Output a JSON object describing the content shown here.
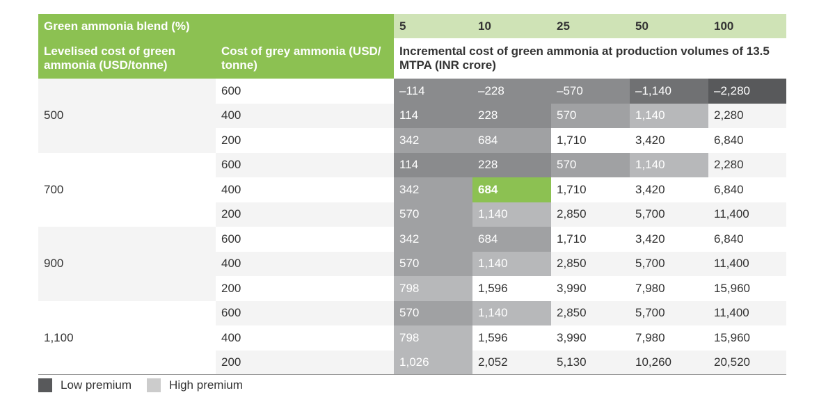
{
  "header": {
    "blend_label": "Green ammonia blend (%)",
    "blends": [
      "5",
      "10",
      "25",
      "50",
      "100"
    ],
    "lev_label": "Levelised cost of green ammonia (USD/tonne)",
    "grey_label": "Cost of grey ammonia (USD/ tonne)",
    "incremental_label": "Incremental cost of green ammonia at production volumes of 13.5 MTPA (INR crore)"
  },
  "colors": {
    "green": "#8cc152",
    "light_green": "#cfe3b6",
    "low_premium": "#58595b",
    "high_premium": "#cccccc"
  },
  "chart_data": {
    "type": "table",
    "columns": [
      "5",
      "10",
      "25",
      "50",
      "100"
    ],
    "groups": [
      {
        "levelised_cost": "500",
        "rows": [
          {
            "grey_cost": "600",
            "values": [
              "–114",
              "–228",
              "–570",
              "–1,140",
              "–2,280"
            ],
            "shades": [
              3,
              3,
              3,
              4,
              5
            ]
          },
          {
            "grey_cost": "400",
            "values": [
              "114",
              "228",
              "570",
              "1,140",
              "2,280"
            ],
            "shades": [
              3,
              3,
              2,
              1,
              0
            ]
          },
          {
            "grey_cost": "200",
            "values": [
              "342",
              "684",
              "1,710",
              "3,420",
              "6,840"
            ],
            "shades": [
              2,
              2,
              0,
              0,
              0
            ]
          }
        ]
      },
      {
        "levelised_cost": "700",
        "rows": [
          {
            "grey_cost": "600",
            "values": [
              "114",
              "228",
              "570",
              "1,140",
              "2,280"
            ],
            "shades": [
              3,
              3,
              2,
              1,
              0
            ]
          },
          {
            "grey_cost": "400",
            "values": [
              "342",
              "684",
              "1,710",
              "3,420",
              "6,840"
            ],
            "shades": [
              2,
              9,
              0,
              0,
              0
            ]
          },
          {
            "grey_cost": "200",
            "values": [
              "570",
              "1,140",
              "2,850",
              "5,700",
              "11,400"
            ],
            "shades": [
              2,
              1,
              0,
              0,
              0
            ]
          }
        ]
      },
      {
        "levelised_cost": "900",
        "rows": [
          {
            "grey_cost": "600",
            "values": [
              "342",
              "684",
              "1,710",
              "3,420",
              "6,840"
            ],
            "shades": [
              2,
              2,
              0,
              0,
              0
            ]
          },
          {
            "grey_cost": "400",
            "values": [
              "570",
              "1,140",
              "2,850",
              "5,700",
              "11,400"
            ],
            "shades": [
              2,
              1,
              0,
              0,
              0
            ]
          },
          {
            "grey_cost": "200",
            "values": [
              "798",
              "1,596",
              "3,990",
              "7,980",
              "15,960"
            ],
            "shades": [
              1,
              0,
              0,
              0,
              0
            ]
          }
        ]
      },
      {
        "levelised_cost": "1,100",
        "rows": [
          {
            "grey_cost": "600",
            "values": [
              "570",
              "1,140",
              "2,850",
              "5,700",
              "11,400"
            ],
            "shades": [
              2,
              1,
              0,
              0,
              0
            ]
          },
          {
            "grey_cost": "400",
            "values": [
              "798",
              "1,596",
              "3,990",
              "7,980",
              "15,960"
            ],
            "shades": [
              1,
              0,
              0,
              0,
              0
            ]
          },
          {
            "grey_cost": "200",
            "values": [
              "1,026",
              "2,052",
              "5,130",
              "10,260",
              "20,520"
            ],
            "shades": [
              1,
              0,
              0,
              0,
              0
            ]
          }
        ]
      }
    ],
    "highlight": {
      "levelised_cost": "700",
      "grey_cost": "400",
      "column": "10",
      "value": "684"
    }
  },
  "legend": {
    "low_label": "Low premium",
    "high_label": "High premium"
  }
}
